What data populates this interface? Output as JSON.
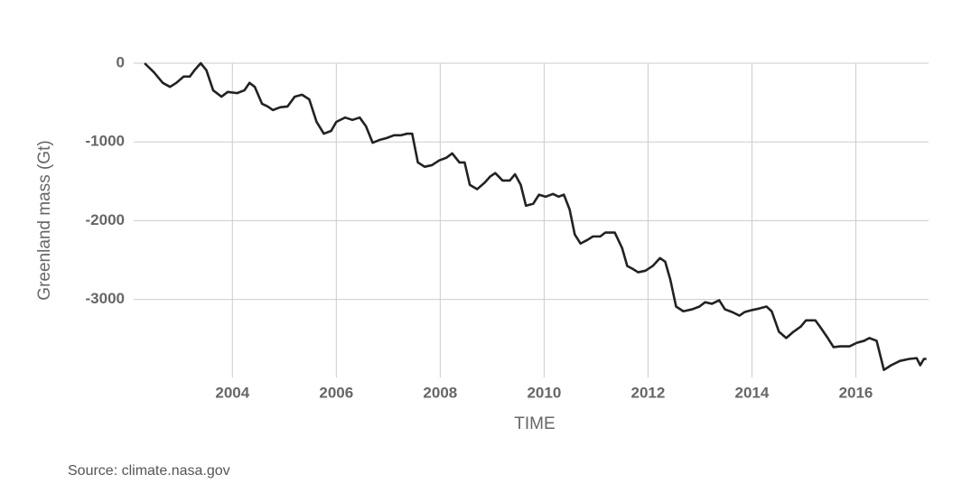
{
  "chart_data": {
    "type": "line",
    "ylabel": "Greenland mass (Gt)",
    "xlabel": "TIME",
    "source": "Source: climate.nasa.gov",
    "color": "#222222",
    "grid": true,
    "xlim": [
      2002.1,
      2017.4
    ],
    "ylim": [
      -3990,
      0
    ],
    "xticks": [
      2004,
      2006,
      2008,
      2010,
      2012,
      2014,
      2016
    ],
    "yticks": [
      0,
      -1000,
      -2000,
      -3000
    ],
    "x": [
      2002.31,
      2002.49,
      2002.66,
      2002.8,
      2002.92,
      2003.06,
      2003.18,
      2003.27,
      2003.39,
      2003.5,
      2003.63,
      2003.79,
      2003.91,
      2004.09,
      2004.23,
      2004.33,
      2004.43,
      2004.57,
      2004.68,
      2004.78,
      2004.92,
      2005.06,
      2005.2,
      2005.34,
      2005.48,
      2005.62,
      2005.76,
      2005.9,
      2006.0,
      2006.17,
      2006.31,
      2006.45,
      2006.57,
      2006.7,
      2006.83,
      2006.97,
      2007.11,
      2007.25,
      2007.36,
      2007.46,
      2007.57,
      2007.7,
      2007.84,
      2007.98,
      2008.12,
      2008.23,
      2008.37,
      2008.47,
      2008.57,
      2008.71,
      2008.85,
      2008.96,
      2009.06,
      2009.2,
      2009.34,
      2009.44,
      2009.55,
      2009.65,
      2009.79,
      2009.9,
      2010.03,
      2010.17,
      2010.28,
      2010.38,
      2010.49,
      2010.59,
      2010.7,
      2010.83,
      2010.94,
      2011.08,
      2011.18,
      2011.36,
      2011.5,
      2011.6,
      2011.7,
      2011.81,
      2011.95,
      2012.09,
      2012.23,
      2012.33,
      2012.43,
      2012.54,
      2012.68,
      2012.85,
      2012.99,
      2013.1,
      2013.23,
      2013.37,
      2013.48,
      2013.62,
      2013.76,
      2013.86,
      2014.0,
      2014.14,
      2014.28,
      2014.38,
      2014.52,
      2014.66,
      2014.8,
      2014.94,
      2015.04,
      2015.22,
      2015.32,
      2015.46,
      2015.57,
      2015.7,
      2015.88,
      2016.02,
      2016.16,
      2016.26,
      2016.4,
      2016.54,
      2016.68,
      2016.85,
      2017.03,
      2017.17,
      2017.24,
      2017.31,
      2017.36
    ],
    "values": [
      0,
      -115,
      -250,
      -300,
      -250,
      -170,
      -170,
      -90,
      0,
      -90,
      -345,
      -425,
      -365,
      -380,
      -345,
      -250,
      -300,
      -515,
      -550,
      -595,
      -560,
      -550,
      -425,
      -400,
      -460,
      -745,
      -895,
      -860,
      -745,
      -690,
      -720,
      -690,
      -800,
      -1010,
      -975,
      -950,
      -915,
      -915,
      -895,
      -895,
      -1260,
      -1315,
      -1295,
      -1235,
      -1200,
      -1145,
      -1260,
      -1260,
      -1545,
      -1600,
      -1520,
      -1440,
      -1395,
      -1490,
      -1490,
      -1410,
      -1545,
      -1810,
      -1785,
      -1670,
      -1695,
      -1660,
      -1695,
      -1670,
      -1855,
      -2175,
      -2290,
      -2245,
      -2200,
      -2200,
      -2150,
      -2150,
      -2345,
      -2575,
      -2610,
      -2655,
      -2635,
      -2575,
      -2475,
      -2520,
      -2750,
      -3090,
      -3150,
      -3125,
      -3090,
      -3035,
      -3055,
      -3010,
      -3125,
      -3160,
      -3205,
      -3160,
      -3135,
      -3115,
      -3090,
      -3150,
      -3410,
      -3490,
      -3410,
      -3345,
      -3265,
      -3265,
      -3355,
      -3490,
      -3605,
      -3595,
      -3595,
      -3550,
      -3525,
      -3490,
      -3525,
      -3895,
      -3835,
      -3780,
      -3755,
      -3745,
      -3835,
      -3755,
      -3755
    ]
  }
}
